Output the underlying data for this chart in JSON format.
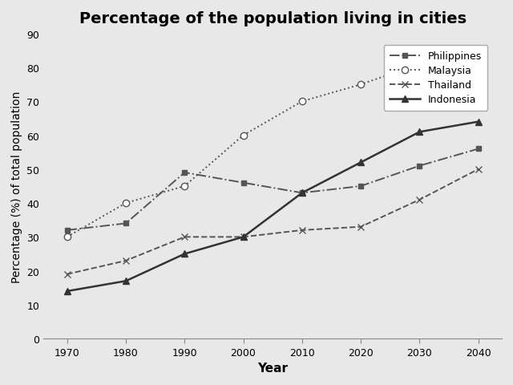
{
  "title": "Percentage of the population living in cities",
  "xlabel": "Year",
  "ylabel": "Percentage (%) of total population",
  "years": [
    1970,
    1980,
    1990,
    2000,
    2010,
    2020,
    2030,
    2040
  ],
  "series": [
    {
      "name": "Philippines",
      "values": [
        32,
        34,
        49,
        46,
        43,
        45,
        51,
        56
      ],
      "color": "#555555",
      "linestyle": "-.",
      "marker": "s",
      "markersize": 5,
      "markerfacecolor": "#555555",
      "linewidth": 1.4
    },
    {
      "name": "Malaysia",
      "values": [
        30,
        40,
        45,
        60,
        70,
        75,
        81,
        83
      ],
      "color": "#555555",
      "linestyle": ":",
      "marker": "o",
      "markersize": 6,
      "markerfacecolor": "white",
      "linewidth": 1.4
    },
    {
      "name": "Thailand",
      "values": [
        19,
        23,
        30,
        30,
        32,
        33,
        41,
        50
      ],
      "color": "#555555",
      "linestyle": "--",
      "marker": "x",
      "markersize": 6,
      "markerfacecolor": "#555555",
      "linewidth": 1.4
    },
    {
      "name": "Indonesia",
      "values": [
        14,
        17,
        25,
        30,
        43,
        52,
        61,
        64
      ],
      "color": "#333333",
      "linestyle": "-",
      "marker": "^",
      "markersize": 6,
      "markerfacecolor": "#333333",
      "linewidth": 1.8
    }
  ],
  "ylim": [
    0,
    90
  ],
  "yticks": [
    0,
    10,
    20,
    30,
    40,
    50,
    60,
    70,
    80,
    90
  ],
  "xlim": [
    1966,
    2044
  ],
  "xticks": [
    1970,
    1980,
    1990,
    2000,
    2010,
    2020,
    2030,
    2040
  ],
  "background_color": "#e8e8e8",
  "plot_bg_color": "#e8e8e8",
  "figsize": [
    6.4,
    4.81
  ],
  "dpi": 100,
  "title_fontsize": 14,
  "axis_label_fontsize": 11,
  "tick_fontsize": 9,
  "legend_fontsize": 9
}
